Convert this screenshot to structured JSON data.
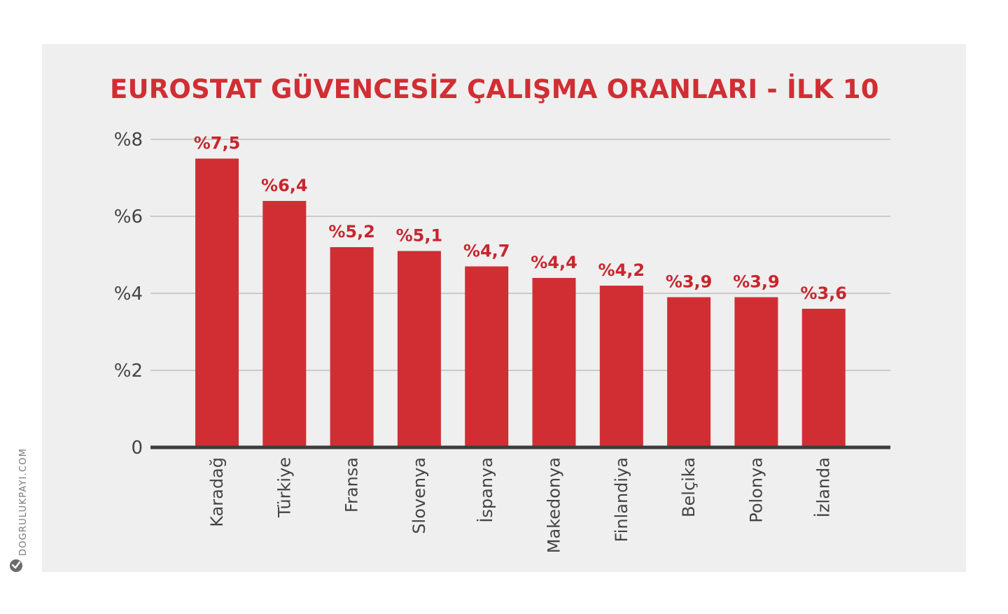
{
  "chart_data": {
    "type": "bar",
    "title": "EUROSTAT GÜVENCESİZ ÇALIŞMA ORANLARI - İLK 10",
    "categories": [
      "Karadağ",
      "Türkiye",
      "Fransa",
      "Slovenya",
      "İspanya",
      "Makedonya",
      "Finlandiya",
      "Belçika",
      "Polonya",
      "İzlanda"
    ],
    "values": [
      7.5,
      6.4,
      5.2,
      5.1,
      4.7,
      4.4,
      4.2,
      3.9,
      3.9,
      3.6
    ],
    "value_labels": [
      "%7,5",
      "%6,4",
      "%5,2",
      "%5,1",
      "%4,7",
      "%4,4",
      "%4,2",
      "%3,9",
      "%3,9",
      "%3,6"
    ],
    "ylim": [
      0,
      8
    ],
    "yticks": [
      0,
      2,
      4,
      6,
      8
    ],
    "ytick_labels": [
      "0",
      "%2",
      "%4",
      "%6",
      "%8"
    ],
    "xlabel": "",
    "ylabel": "",
    "grid": true,
    "legend": "none"
  },
  "colors": {
    "bar": "#d12e34",
    "title": "#d12e34",
    "value_label": "#c8262e",
    "grid": "#bdbdbd",
    "axis": "#3d3d3d",
    "tick_text": "#444444",
    "panel": "#efefef"
  },
  "watermark": {
    "text": "DOGRULUKPAYI.COM",
    "icon": "check-badge-icon"
  }
}
